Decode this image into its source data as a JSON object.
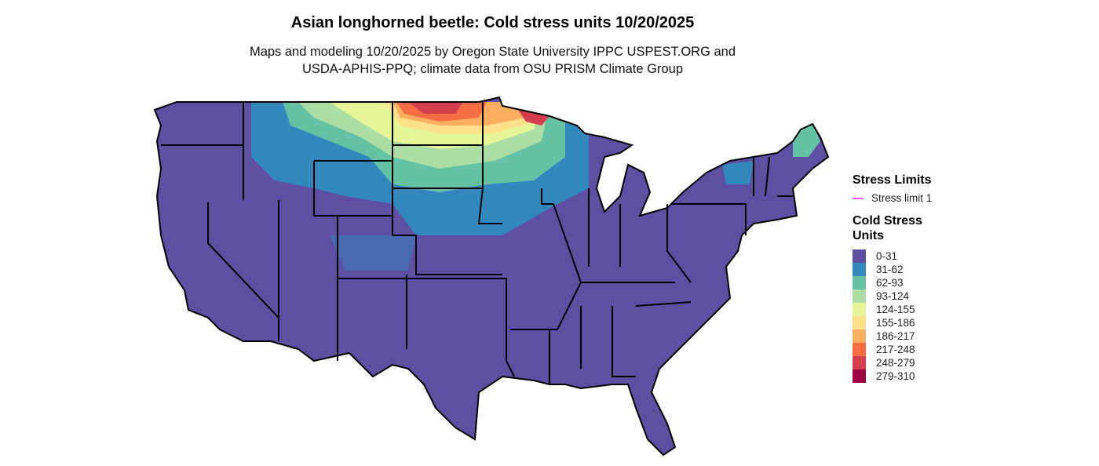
{
  "title": "Asian longhorned beetle: Cold stress units 10/20/2025",
  "subtitle_line1": "Maps and modeling 10/20/2025 by Oregon State University IPPC USPEST.ORG and",
  "subtitle_line2": "USDA-APHIS-PPQ; climate data from OSU PRISM Climate Group",
  "legend": {
    "limits_title": "Stress Limits",
    "limit_label": "Stress limit 1",
    "limit_color": "#ff55ff",
    "units_title_line1": "Cold Stress",
    "units_title_line2": "Units",
    "classes": [
      {
        "label": "0-31",
        "color": "#5E4FA2"
      },
      {
        "label": "31-62",
        "color": "#3288BD"
      },
      {
        "label": "62-93",
        "color": "#66C2A5"
      },
      {
        "label": "93-124",
        "color": "#ABDDA4"
      },
      {
        "label": "124-155",
        "color": "#E6F598"
      },
      {
        "label": "155-186",
        "color": "#FEE08B"
      },
      {
        "label": "186-217",
        "color": "#FDAE61"
      },
      {
        "label": "217-248",
        "color": "#F46D43"
      },
      {
        "label": "248-279",
        "color": "#D53E4F"
      },
      {
        "label": "279-310",
        "color": "#9E0142"
      }
    ]
  }
}
